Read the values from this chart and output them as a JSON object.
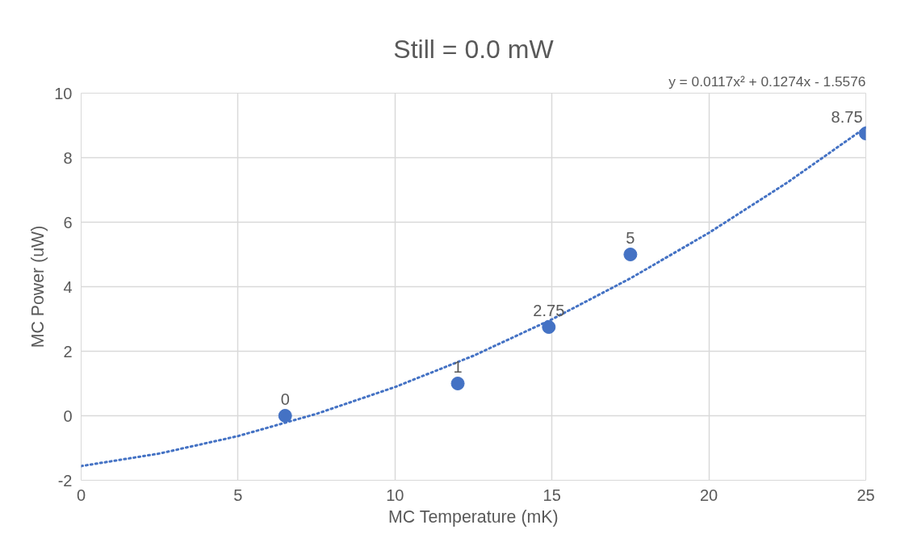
{
  "chart_data": {
    "type": "scatter",
    "title": "Still = 0.0 mW",
    "xlabel": "MC Temperature (mK)",
    "ylabel": "MC Power (uW)",
    "annotations": [
      "y = 0.0117x² + 0.1274x - 1.5576"
    ],
    "x": [
      6.5,
      12,
      14.9,
      17.5,
      25
    ],
    "series": [
      {
        "color": "#4472c4",
        "values": [
          0,
          1,
          2.75,
          5,
          8.75
        ],
        "value_labels": [
          "0",
          "1",
          "2.75",
          "5",
          "8.75"
        ],
        "marker": "circle"
      },
      {
        "type": "line",
        "color": "#4472c4",
        "line_style": "dotted",
        "marker": "none",
        "x": [
          0,
          2.5,
          5,
          7.5,
          10,
          12.5,
          15,
          17.5,
          20,
          22.5,
          25
        ],
        "values": [
          -1.56,
          -1.17,
          -0.63,
          0.06,
          0.89,
          1.86,
          2.99,
          4.26,
          5.67,
          7.23,
          8.94
        ]
      }
    ],
    "xlim": [
      0,
      25
    ],
    "xticks": [
      0,
      5,
      10,
      15,
      20,
      25
    ],
    "ylim": [
      -2,
      10
    ],
    "yticks": [
      -2,
      0,
      2,
      4,
      6,
      8,
      10
    ],
    "grid": true
  }
}
